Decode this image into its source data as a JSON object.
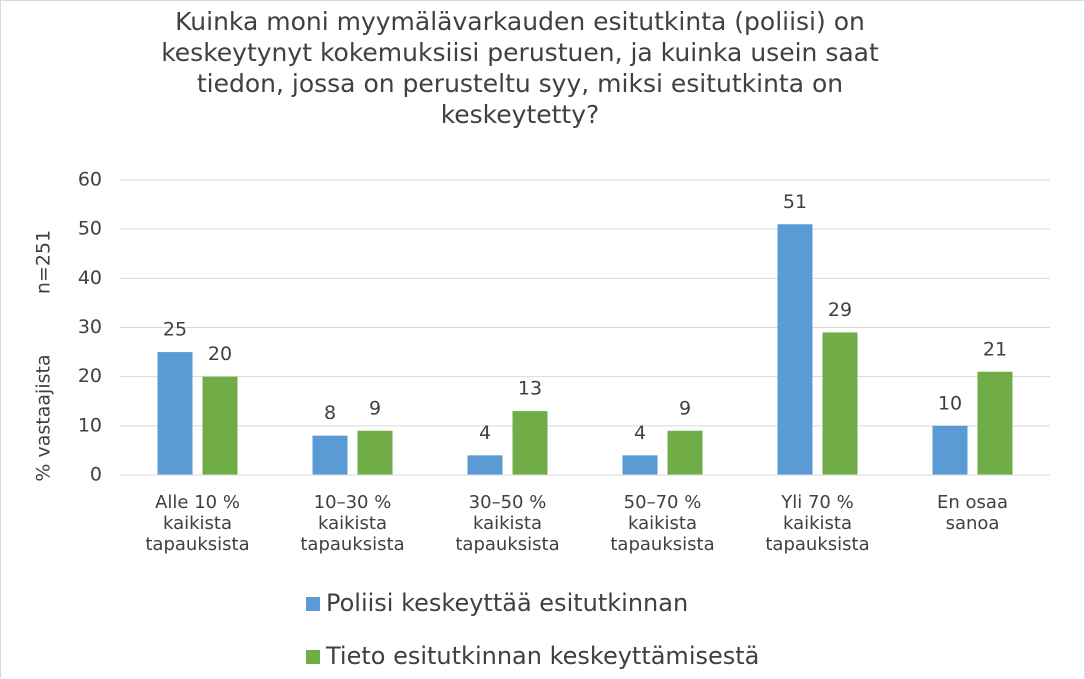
{
  "chart_data": {
    "type": "bar",
    "title": "Kuinka moni myymälävarkauden esitutkinta (poliisi) on keskeytynyt kokemuksiisi perustuen, ja kuinka usein saat tiedon, jossa on perusteltu syy, miksi esitutkinta on keskeytetty?",
    "y_label": "% vastaajista",
    "annotation": "n=251",
    "categories": [
      "Alle 10 % kaikista tapauksista",
      "10–30 % kaikista tapauksista",
      "30–50 % kaikista tapauksista",
      "50–70 % kaikista tapauksista",
      "Yli 70 % kaikista tapauksista",
      "En osaa sanoa"
    ],
    "series": [
      {
        "name": "Poliisi keskeyttää esitutkinnan",
        "color": "#5b9bd5",
        "values": [
          25,
          8,
          4,
          4,
          51,
          10
        ]
      },
      {
        "name": "Tieto esitutkinnan keskeyttämisestä",
        "color": "#70ad47",
        "values": [
          20,
          9,
          13,
          9,
          29,
          21
        ]
      }
    ],
    "ylim": [
      0,
      60
    ],
    "yticks": [
      0,
      10,
      20,
      30,
      40,
      50,
      60
    ],
    "grid": true,
    "legend": "bottom"
  }
}
